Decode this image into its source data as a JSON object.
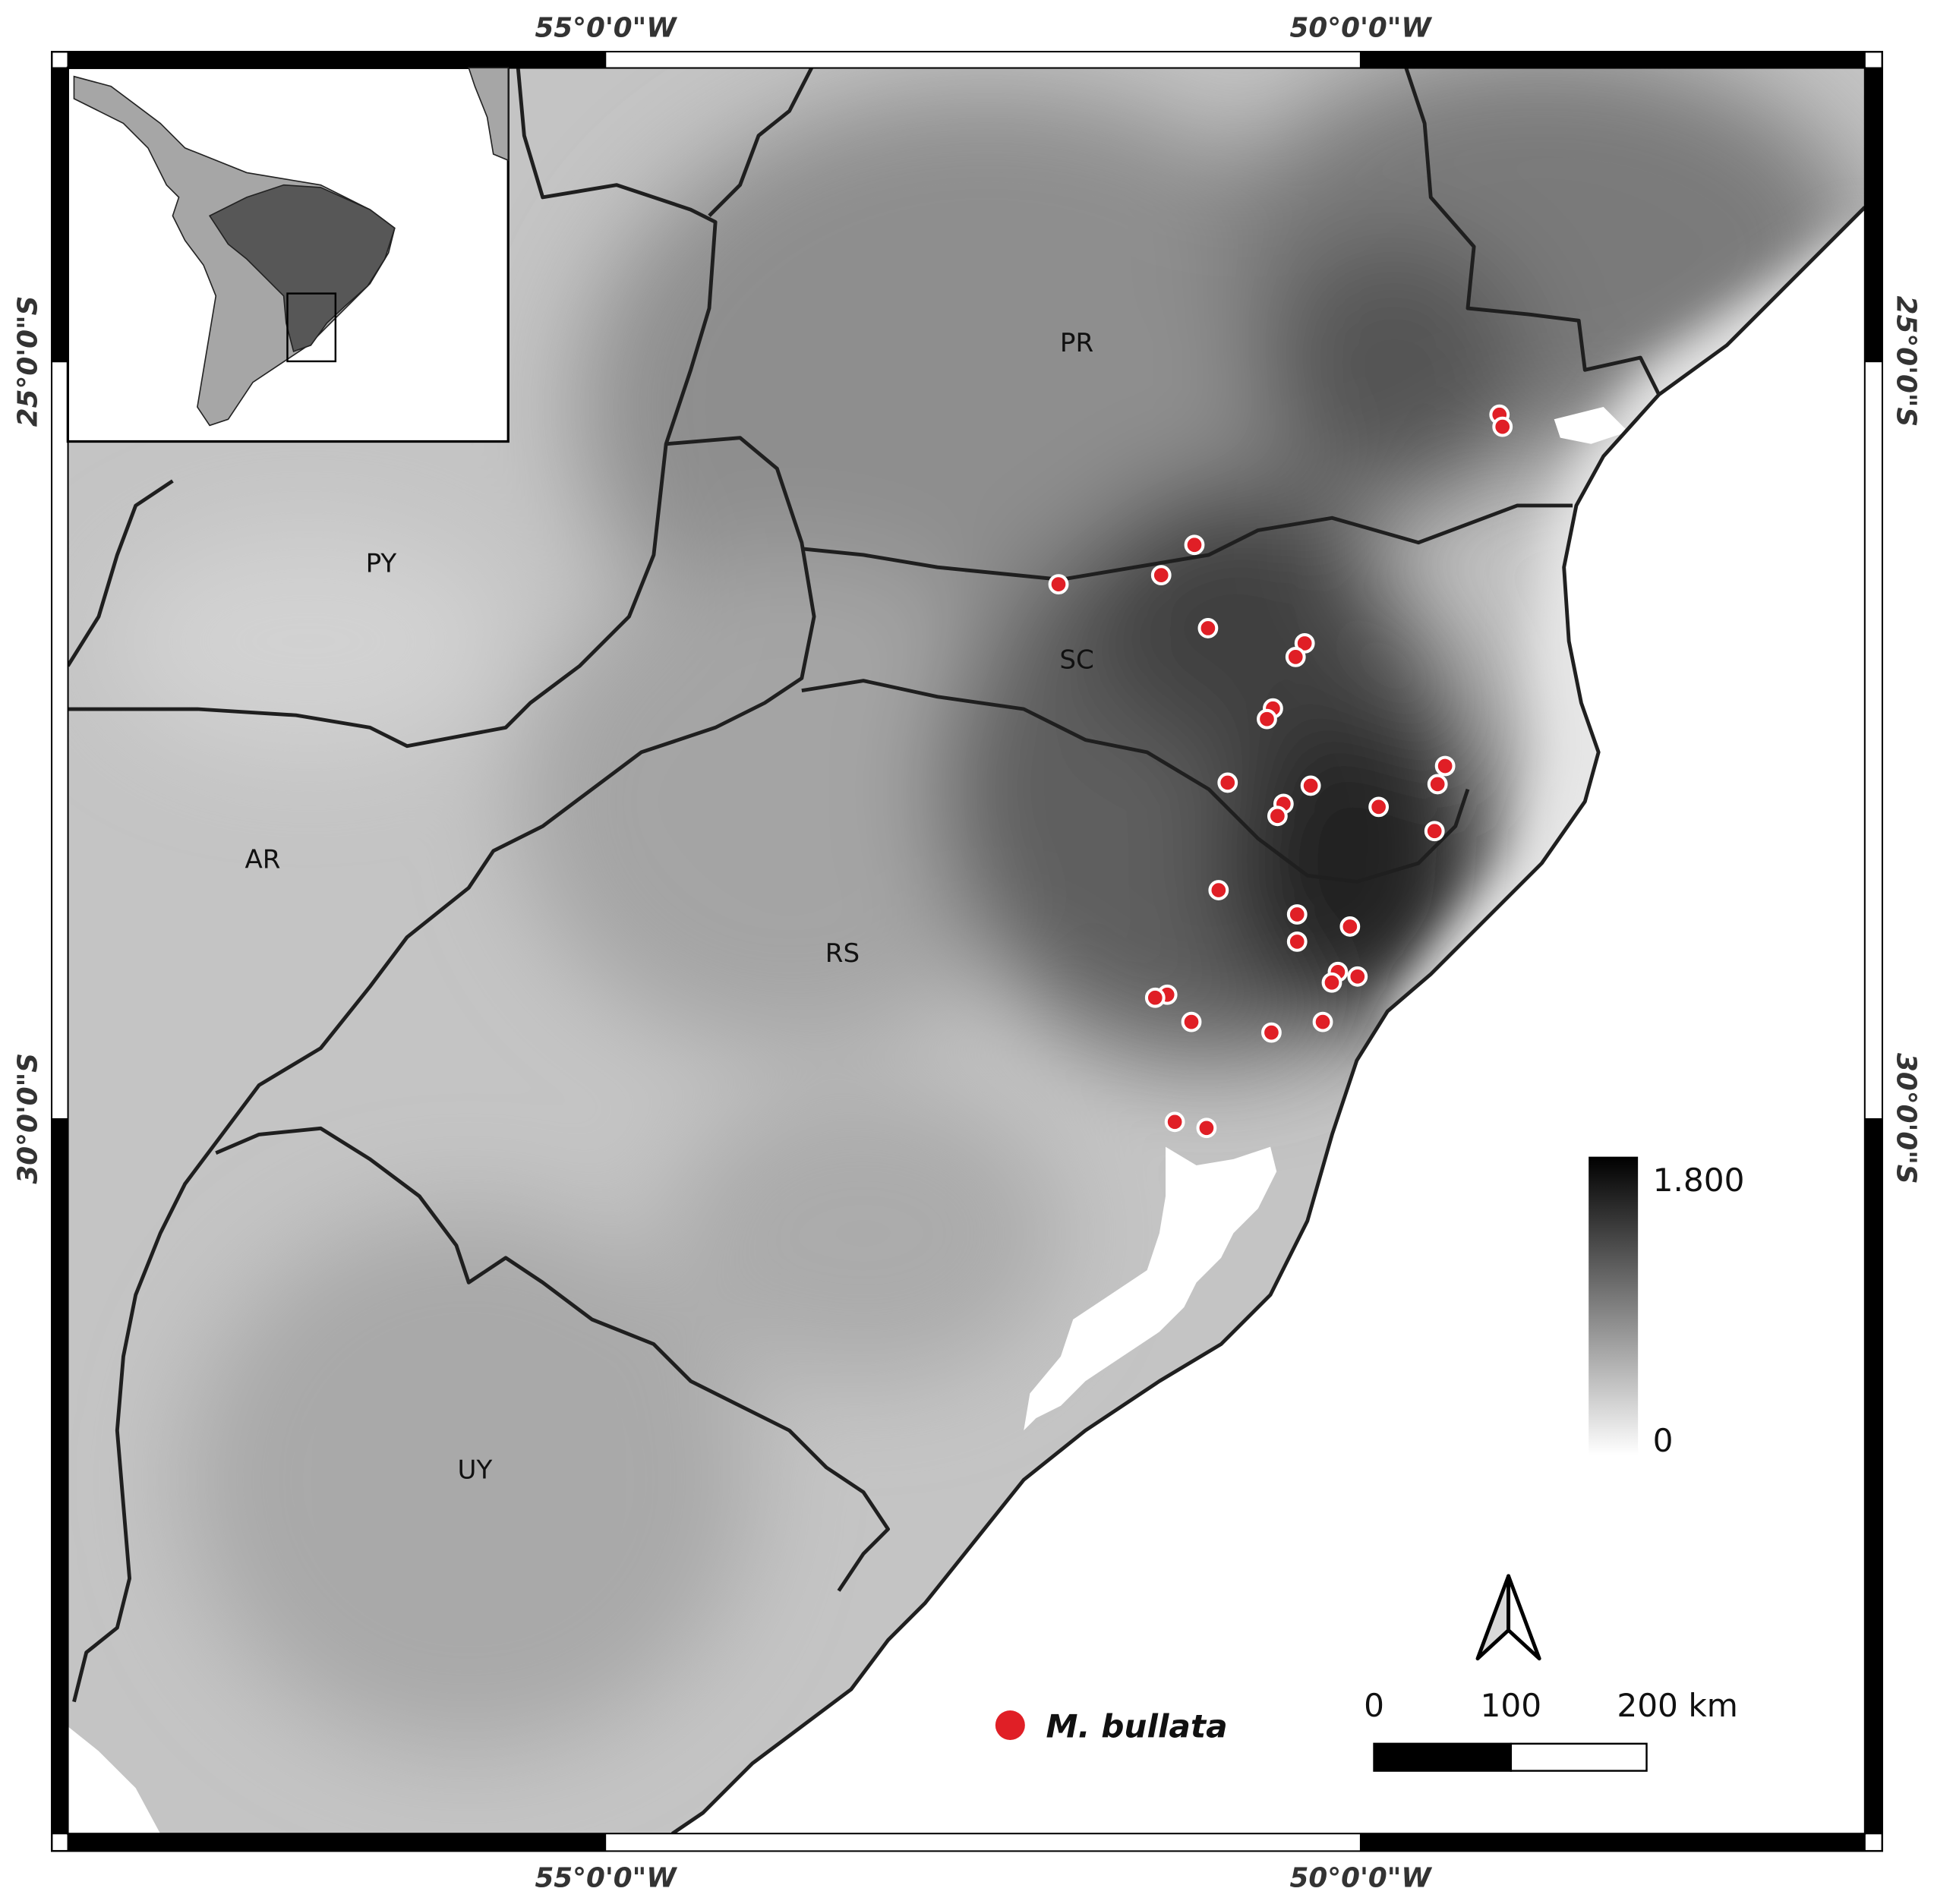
{
  "map": {
    "xlim": [
      -58.56,
      -46.66
    ],
    "ylim": [
      -23.06,
      -34.72
    ],
    "xticks": [
      {
        "value": -55,
        "label": "55°0'0\"W"
      },
      {
        "value": -50,
        "label": "50°0'0\"W"
      }
    ],
    "yticks": [
      {
        "value": -25,
        "label": "25°0'0\"S"
      },
      {
        "value": -30,
        "label": "30°0'0\"S"
      }
    ],
    "regions": [
      "PR",
      "PY",
      "SC",
      "AR",
      "RS",
      "UY"
    ],
    "points": {
      "name": "M. bullata",
      "color": "#e01f26",
      "lon": [
        -49.08,
        -49.06,
        -51.1,
        -51.32,
        -52.0,
        -51.01,
        -50.37,
        -50.43,
        -50.58,
        -50.62,
        -49.44,
        -49.49,
        -50.88,
        -50.33,
        -50.51,
        -50.55,
        -49.88,
        -49.51,
        -50.94,
        -50.42,
        -50.07,
        -50.42,
        -50.15,
        -50.02,
        -50.19,
        -51.28,
        -51.36,
        -51.12,
        -50.59,
        -50.25,
        -51.23,
        -51.02
      ],
      "lat": [
        -25.35,
        -25.43,
        -26.21,
        -26.41,
        -26.47,
        -26.76,
        -26.86,
        -26.95,
        -27.29,
        -27.36,
        -27.67,
        -27.79,
        -27.78,
        -27.8,
        -27.92,
        -28.0,
        -27.94,
        -28.1,
        -28.49,
        -28.65,
        -28.73,
        -28.83,
        -29.03,
        -29.06,
        -29.1,
        -29.18,
        -29.2,
        -29.36,
        -29.43,
        -29.36,
        -30.02,
        -30.06
      ]
    },
    "elevation_legend": {
      "labels": [
        "1.800",
        "0"
      ]
    },
    "scale_bar": {
      "labels": [
        "0",
        "100",
        "200 km"
      ]
    }
  }
}
